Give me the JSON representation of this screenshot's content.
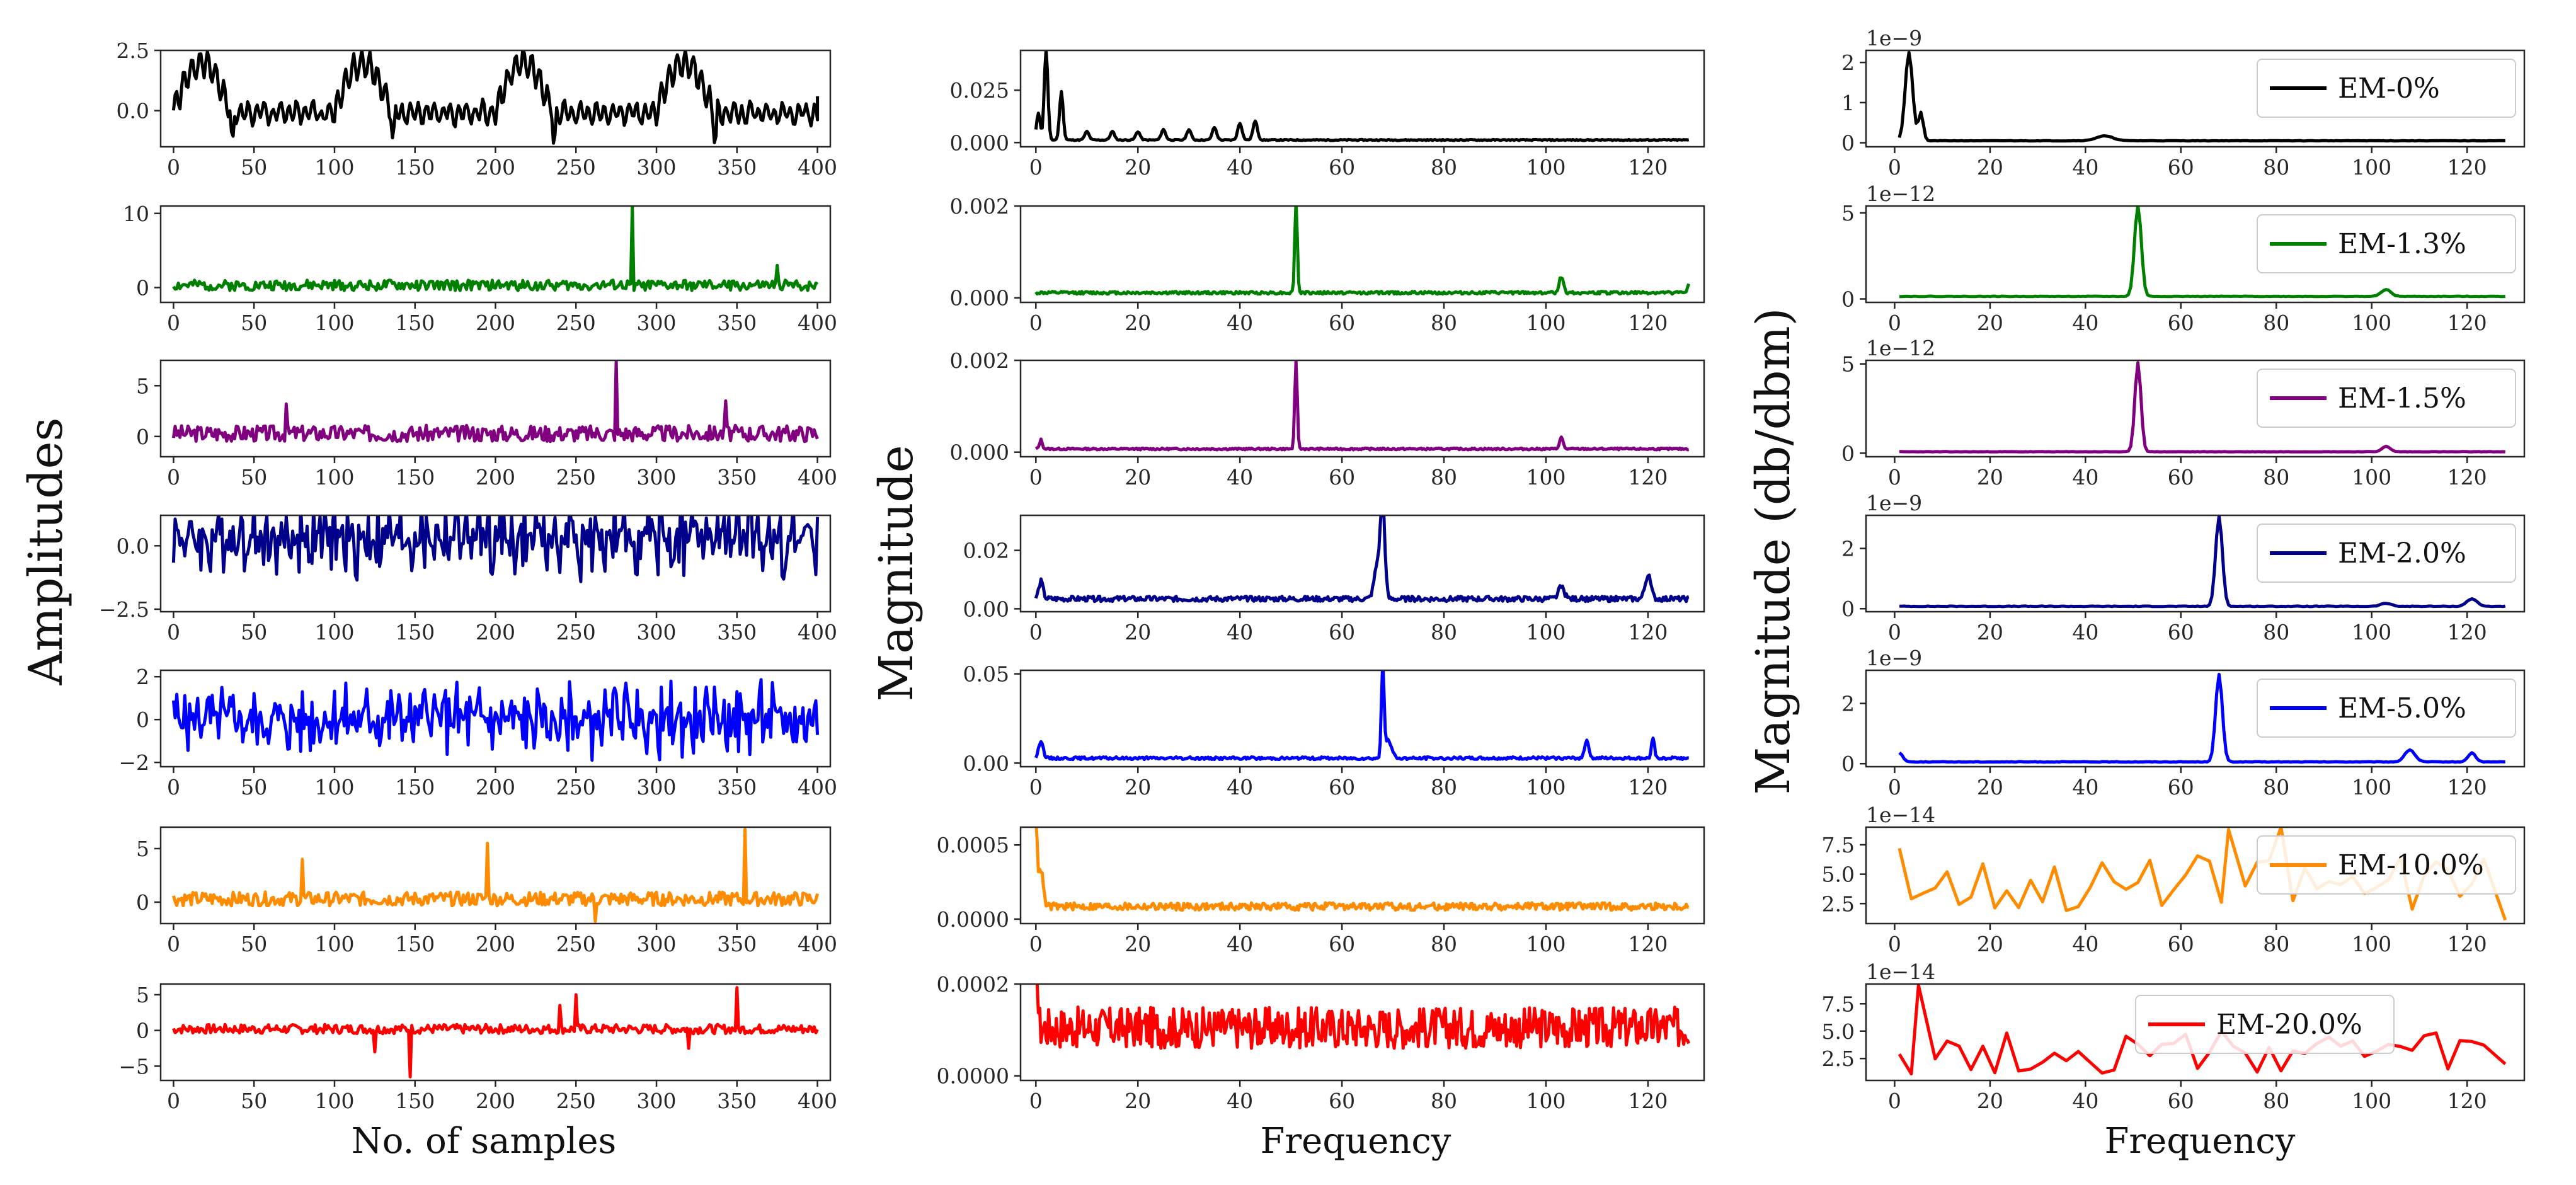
{
  "figure": {
    "y_label_left": "Amplitudes",
    "y_label_middle": "Magnitude",
    "y_label_right": "Magnitude (db/dbm)",
    "x_label_left": "No. of samples",
    "x_label_middle": "Frequency",
    "x_label_right": "Frequency"
  },
  "chart_data": [
    {
      "id": "time-em-0",
      "type": "line",
      "color": "#000000",
      "xlim": [
        0,
        400
      ],
      "xticks": [
        0,
        50,
        100,
        150,
        200,
        250,
        300,
        350,
        400
      ],
      "ylim": [
        -1.5,
        2.5
      ],
      "yticks": [
        0,
        2.5
      ],
      "yticklabels": [
        "0.0",
        "2.5"
      ],
      "signal": {
        "kind": "periodic",
        "period": 100,
        "base": -0.1,
        "amp": 2.2,
        "noise": 0.9,
        "seed": 1
      },
      "x": [
        0,
        400
      ]
    },
    {
      "id": "time-em-1.3",
      "type": "line",
      "color": "#008000",
      "xlim": [
        0,
        400
      ],
      "xticks": [
        0,
        50,
        100,
        150,
        200,
        250,
        300,
        350,
        400
      ],
      "ylim": [
        -2,
        11
      ],
      "yticks": [
        0,
        10
      ],
      "yticklabels": [
        "0",
        "10"
      ],
      "signal": {
        "kind": "noise",
        "base": 0.3,
        "noise": 1.4,
        "seed": 2,
        "spikes": [
          [
            285,
            11
          ],
          [
            375,
            3
          ]
        ]
      },
      "x": [
        0,
        400
      ]
    },
    {
      "id": "time-em-1.5",
      "type": "line",
      "color": "#800080",
      "xlim": [
        0,
        400
      ],
      "xticks": [
        0,
        50,
        100,
        150,
        200,
        250,
        300,
        350,
        400
      ],
      "ylim": [
        -2,
        7.5
      ],
      "yticks": [
        0,
        5
      ],
      "yticklabels": [
        "0",
        "5"
      ],
      "signal": {
        "kind": "noise",
        "base": 0.3,
        "noise": 1.6,
        "seed": 3,
        "spikes": [
          [
            275,
            7.5
          ],
          [
            70,
            3.2
          ],
          [
            343,
            3.5
          ]
        ]
      },
      "x": [
        0,
        400
      ]
    },
    {
      "id": "time-em-2.0",
      "type": "line",
      "color": "#00008b",
      "xlim": [
        0,
        400
      ],
      "xticks": [
        0,
        50,
        100,
        150,
        200,
        250,
        300,
        350,
        400
      ],
      "ylim": [
        -2.6,
        1.2
      ],
      "yticks": [
        -2.5,
        0
      ],
      "yticklabels": [
        "−2.5",
        "0.0"
      ],
      "signal": {
        "kind": "dense",
        "base": 0.3,
        "noise": 1.8,
        "seed": 4
      },
      "x": [
        0,
        400
      ]
    },
    {
      "id": "time-em-5.0",
      "type": "line",
      "color": "#0000ff",
      "xlim": [
        0,
        400
      ],
      "xticks": [
        0,
        50,
        100,
        150,
        200,
        250,
        300,
        350,
        400
      ],
      "ylim": [
        -2.2,
        2.3
      ],
      "yticks": [
        -2,
        0,
        2
      ],
      "yticklabels": [
        "−2",
        "0",
        "2"
      ],
      "signal": {
        "kind": "dense",
        "base": 0,
        "noise": 1.9,
        "seed": 5
      },
      "x": [
        0,
        400
      ]
    },
    {
      "id": "time-em-10.0",
      "type": "line",
      "color": "#ff8c00",
      "xlim": [
        0,
        400
      ],
      "xticks": [
        0,
        50,
        100,
        150,
        200,
        250,
        300,
        350,
        400
      ],
      "ylim": [
        -2,
        7
      ],
      "yticks": [
        0,
        5
      ],
      "yticklabels": [
        "0",
        "5"
      ],
      "signal": {
        "kind": "noise",
        "base": 0.3,
        "noise": 1.3,
        "seed": 6,
        "spikes": [
          [
            355,
            6.8
          ],
          [
            195,
            5.5
          ],
          [
            80,
            4
          ],
          [
            262,
            -1.8
          ]
        ]
      },
      "x": [
        0,
        400
      ]
    },
    {
      "id": "time-em-20.0",
      "type": "line",
      "color": "#ff0000",
      "xlim": [
        0,
        400
      ],
      "xticks": [
        0,
        50,
        100,
        150,
        200,
        250,
        300,
        350,
        400
      ],
      "ylim": [
        -7,
        6.5
      ],
      "yticks": [
        -5,
        0,
        5
      ],
      "yticklabels": [
        "−5",
        "0",
        "5"
      ],
      "signal": {
        "kind": "noise",
        "base": 0.2,
        "noise": 1.3,
        "seed": 7,
        "spikes": [
          [
            350,
            6
          ],
          [
            147,
            -6.5
          ],
          [
            250,
            5
          ],
          [
            240,
            3.5
          ],
          [
            125,
            -3
          ],
          [
            320,
            -2.5
          ]
        ]
      },
      "x": [
        0,
        400
      ]
    },
    {
      "id": "fft-em-0",
      "type": "line",
      "color": "#000000",
      "xlim": [
        0,
        128
      ],
      "xticks": [
        0,
        20,
        40,
        60,
        80,
        100,
        120
      ],
      "ylim": [
        -0.002,
        0.044
      ],
      "yticks": [
        0,
        0.025
      ],
      "yticklabels": [
        "0.000",
        "0.025"
      ],
      "signal": {
        "kind": "fft",
        "base": 0.001,
        "noise": 0.0005,
        "seed": 11,
        "peaks": [
          [
            2,
            0.043,
            0.5
          ],
          [
            5,
            0.023,
            0.5
          ],
          [
            0.5,
            0.013,
            0.5
          ],
          [
            40,
            0.008,
            0.6
          ],
          [
            43,
            0.009,
            0.6
          ],
          [
            35,
            0.006,
            0.6
          ],
          [
            30,
            0.005,
            0.6
          ],
          [
            25,
            0.005,
            0.6
          ],
          [
            20,
            0.004,
            0.6
          ],
          [
            15,
            0.004,
            0.6
          ],
          [
            10,
            0.004,
            0.6
          ]
        ]
      },
      "x": [
        0,
        128
      ]
    },
    {
      "id": "fft-em-1.3",
      "type": "line",
      "color": "#008000",
      "xlim": [
        0,
        128
      ],
      "xticks": [
        0,
        20,
        40,
        60,
        80,
        100,
        120
      ],
      "ylim": [
        -0.0001,
        0.002
      ],
      "yticks": [
        0,
        0.002
      ],
      "yticklabels": [
        "0.000",
        "0.002"
      ],
      "signal": {
        "kind": "fft",
        "base": 8e-05,
        "noise": 6e-05,
        "seed": 12,
        "peaks": [
          [
            51,
            0.002,
            0.35
          ],
          [
            103,
            0.00035,
            0.6
          ],
          [
            128,
            0.0002,
            0.4
          ]
        ]
      },
      "x": [
        0,
        128
      ]
    },
    {
      "id": "fft-em-1.5",
      "type": "line",
      "color": "#800080",
      "xlim": [
        0,
        128
      ],
      "xticks": [
        0,
        20,
        40,
        60,
        80,
        100,
        120
      ],
      "ylim": [
        -0.0001,
        0.002
      ],
      "yticks": [
        0,
        0.002
      ],
      "yticklabels": [
        "0.000",
        "0.002"
      ],
      "signal": {
        "kind": "fft",
        "base": 5e-05,
        "noise": 4e-05,
        "seed": 13,
        "peaks": [
          [
            51,
            0.0019,
            0.35
          ],
          [
            103,
            0.00025,
            0.5
          ],
          [
            1,
            0.0002,
            0.4
          ]
        ]
      },
      "x": [
        0,
        128
      ]
    },
    {
      "id": "fft-em-2.0",
      "type": "line",
      "color": "#00008b",
      "xlim": [
        0,
        128
      ],
      "xticks": [
        0,
        20,
        40,
        60,
        80,
        100,
        120
      ],
      "ylim": [
        -0.001,
        0.032
      ],
      "yticks": [
        0,
        0.02
      ],
      "yticklabels": [
        "0.00",
        "0.02"
      ],
      "signal": {
        "kind": "fft",
        "base": 0.0025,
        "noise": 0.0018,
        "seed": 14,
        "peaks": [
          [
            68,
            0.031,
            0.6
          ],
          [
            67,
            0.012,
            0.9
          ],
          [
            120,
            0.008,
            0.8
          ],
          [
            103,
            0.004,
            0.8
          ],
          [
            1,
            0.006,
            0.6
          ]
        ]
      },
      "x": [
        0,
        128
      ]
    },
    {
      "id": "fft-em-5.0",
      "type": "line",
      "color": "#0000ff",
      "xlim": [
        0,
        128
      ],
      "xticks": [
        0,
        20,
        40,
        60,
        80,
        100,
        120
      ],
      "ylim": [
        -0.002,
        0.052
      ],
      "yticks": [
        0,
        0.05
      ],
      "yticklabels": [
        "0.00",
        "0.05"
      ],
      "signal": {
        "kind": "fft",
        "base": 0.002,
        "noise": 0.0015,
        "seed": 15,
        "peaks": [
          [
            68,
            0.052,
            0.35
          ],
          [
            69,
            0.01,
            1
          ],
          [
            108,
            0.01,
            0.6
          ],
          [
            121,
            0.012,
            0.4
          ],
          [
            1,
            0.01,
            0.6
          ]
        ]
      },
      "x": [
        0,
        128
      ]
    },
    {
      "id": "fft-em-10.0",
      "type": "line",
      "color": "#ff8c00",
      "xlim": [
        0,
        128
      ],
      "xticks": [
        0,
        20,
        40,
        60,
        80,
        100,
        120
      ],
      "ylim": [
        -3e-05,
        0.00062
      ],
      "yticks": [
        0,
        0.0005
      ],
      "yticklabels": [
        "0.0000",
        "0.0005"
      ],
      "signal": {
        "kind": "fft",
        "base": 6e-05,
        "noise": 5e-05,
        "seed": 16,
        "peaks": [
          [
            0,
            0.0006,
            0.4
          ],
          [
            1,
            0.00025,
            0.6
          ]
        ]
      },
      "x": [
        0,
        128
      ]
    },
    {
      "id": "fft-em-20.0",
      "type": "line",
      "color": "#ff0000",
      "xlim": [
        0,
        128
      ],
      "xticks": [
        0,
        20,
        40,
        60,
        80,
        100,
        120
      ],
      "ylim": [
        -1e-05,
        0.0002
      ],
      "yticks": [
        0,
        0.0002
      ],
      "yticklabels": [
        "0.0000",
        "0.0002"
      ],
      "signal": {
        "kind": "fft",
        "base": 6e-05,
        "noise": 9e-05,
        "seed": 17,
        "peaks": [
          [
            0,
            0.0002,
            0.4
          ]
        ]
      },
      "x": [
        0,
        128
      ]
    },
    {
      "id": "db-em-0",
      "type": "line",
      "color": "#000000",
      "xlim": [
        -6,
        132
      ],
      "xticks": [
        0,
        20,
        40,
        60,
        80,
        100,
        120
      ],
      "ylim": [
        -0.1,
        2.3
      ],
      "yticks": [
        0,
        1,
        2
      ],
      "yticklabels": [
        "0",
        "1",
        "2"
      ],
      "exponent": "1e−9",
      "legend": "EM-0%",
      "signal": {
        "kind": "smooth",
        "x0": 1,
        "x1": 128,
        "base": 0.05,
        "noise": 0.01,
        "seed": 21,
        "peaks": [
          [
            3,
            2.2,
            1.1
          ],
          [
            5.5,
            0.7,
            0.7
          ],
          [
            44,
            0.12,
            2.5
          ]
        ]
      },
      "x": [
        1,
        128
      ]
    },
    {
      "id": "db-em-1.3",
      "type": "line",
      "color": "#008000",
      "xlim": [
        -6,
        132
      ],
      "xticks": [
        0,
        20,
        40,
        60,
        80,
        100,
        120
      ],
      "ylim": [
        -0.2,
        5.4
      ],
      "yticks": [
        0,
        5
      ],
      "yticklabels": [
        "0",
        "5"
      ],
      "exponent": "1e−12",
      "legend": "EM-1.3%",
      "signal": {
        "kind": "smooth",
        "x0": 1,
        "x1": 128,
        "base": 0.15,
        "noise": 0.03,
        "seed": 22,
        "peaks": [
          [
            51,
            5.3,
            1
          ],
          [
            103,
            0.4,
            1.4
          ]
        ]
      },
      "x": [
        1,
        128
      ]
    },
    {
      "id": "db-em-1.5",
      "type": "line",
      "color": "#800080",
      "xlim": [
        -6,
        132
      ],
      "xticks": [
        0,
        20,
        40,
        60,
        80,
        100,
        120
      ],
      "ylim": [
        -0.2,
        5.2
      ],
      "yticks": [
        0,
        5
      ],
      "yticklabels": [
        "0",
        "5"
      ],
      "exponent": "1e−12",
      "legend": "EM-1.5%",
      "signal": {
        "kind": "smooth",
        "x0": 1,
        "x1": 128,
        "base": 0.08,
        "noise": 0.02,
        "seed": 23,
        "peaks": [
          [
            51,
            5,
            0.9
          ],
          [
            103,
            0.3,
            1.2
          ]
        ]
      },
      "x": [
        1,
        128
      ]
    },
    {
      "id": "db-em-2.0",
      "type": "line",
      "color": "#00008b",
      "xlim": [
        -6,
        132
      ],
      "xticks": [
        0,
        20,
        40,
        60,
        80,
        100,
        120
      ],
      "ylim": [
        -0.1,
        3.1
      ],
      "yticks": [
        0,
        2
      ],
      "yticklabels": [
        "0",
        "2"
      ],
      "exponent": "1e−9",
      "legend": "EM-2.0%",
      "signal": {
        "kind": "smooth",
        "x0": 1,
        "x1": 128,
        "base": 0.08,
        "noise": 0.02,
        "seed": 24,
        "peaks": [
          [
            68,
            3,
            1
          ],
          [
            121,
            0.25,
            1.5
          ],
          [
            103,
            0.1,
            1.5
          ]
        ]
      },
      "x": [
        1,
        128
      ]
    },
    {
      "id": "db-em-5.0",
      "type": "line",
      "color": "#0000ff",
      "xlim": [
        -6,
        132
      ],
      "xticks": [
        0,
        20,
        40,
        60,
        80,
        100,
        120
      ],
      "ylim": [
        -0.1,
        3.1
      ],
      "yticks": [
        0,
        2
      ],
      "yticklabels": [
        "0",
        "2"
      ],
      "exponent": "1e−9",
      "legend": "EM-5.0%",
      "signal": {
        "kind": "smooth",
        "x0": 1,
        "x1": 128,
        "base": 0.06,
        "noise": 0.02,
        "seed": 25,
        "peaks": [
          [
            68,
            2.9,
            1
          ],
          [
            108,
            0.4,
            1.5
          ],
          [
            121,
            0.3,
            1.1
          ],
          [
            1,
            0.3,
            1
          ]
        ]
      },
      "x": [
        1,
        128
      ]
    },
    {
      "id": "db-em-10.0",
      "type": "line",
      "color": "#ff8c00",
      "xlim": [
        -6,
        132
      ],
      "xticks": [
        0,
        20,
        40,
        60,
        80,
        100,
        120
      ],
      "ylim": [
        0.8,
        9
      ],
      "yticks": [
        2.5,
        5,
        7.5
      ],
      "yticklabels": [
        "2.5",
        "5.0",
        "7.5"
      ],
      "exponent": "1e−14",
      "legend": "EM-10.0%",
      "signal": {
        "kind": "jagged",
        "x0": 1,
        "x1": 128,
        "step": 2.5,
        "base": 4.2,
        "noise": 2.4,
        "seed": 26,
        "fixed": [
          [
            1,
            7.2
          ],
          [
            128,
            1.1
          ],
          [
            70,
            8.8
          ],
          [
            81,
            9
          ]
        ]
      },
      "x": [
        1,
        128
      ]
    },
    {
      "id": "db-em-20.0",
      "type": "line",
      "color": "#ff0000",
      "xlim": [
        -6,
        132
      ],
      "xticks": [
        0,
        20,
        40,
        60,
        80,
        100,
        120
      ],
      "ylim": [
        0.5,
        9.3
      ],
      "yticks": [
        2.5,
        5,
        7.5
      ],
      "yticklabels": [
        "2.5",
        "5.0",
        "7.5"
      ],
      "exponent": "1e−14",
      "legend": "EM-20.0%",
      "signal": {
        "kind": "jagged",
        "x0": 1,
        "x1": 128,
        "step": 2.5,
        "base": 3,
        "noise": 2,
        "seed": 27,
        "fixed": [
          [
            5,
            9.2
          ],
          [
            1,
            2.9
          ],
          [
            128,
            2
          ]
        ]
      },
      "x": [
        1,
        128
      ]
    }
  ]
}
